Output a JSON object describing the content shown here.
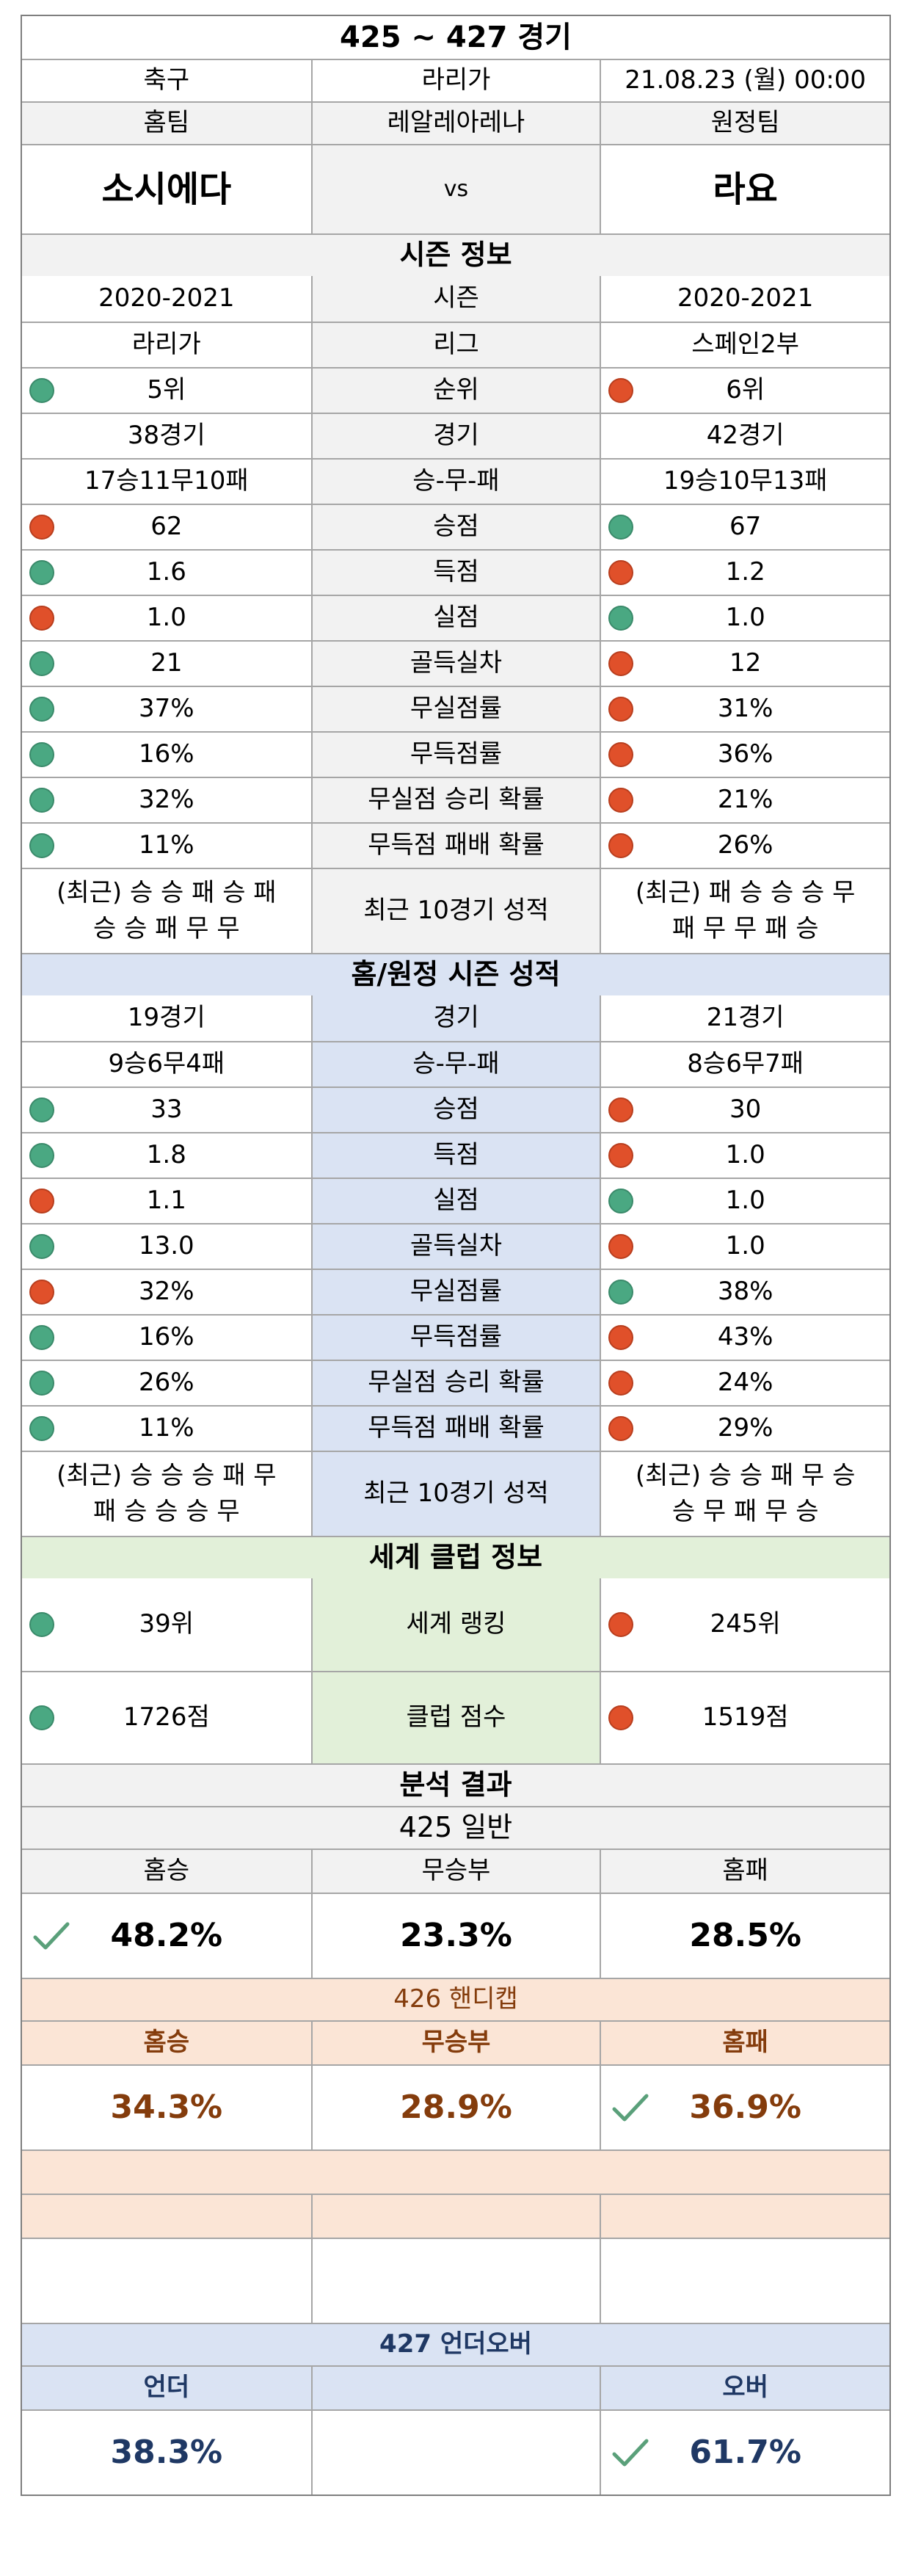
{
  "header": {
    "title": "425 ~ 427 경기",
    "sport": "축구",
    "league": "라리가",
    "datetime": "21.08.23 (월) 00:00",
    "home_label": "홈팀",
    "stadium": "레알레아레나",
    "away_label": "원정팀",
    "home_team": "소시에다",
    "vs": "vs",
    "away_team": "라요"
  },
  "season": {
    "section_title": "시즌 정보",
    "rows": [
      {
        "home": "2020-2021",
        "label": "시즌",
        "away": "2020-2021",
        "home_dot": "",
        "away_dot": ""
      },
      {
        "home": "라리가",
        "label": "리그",
        "away": "스페인2부",
        "home_dot": "",
        "away_dot": ""
      },
      {
        "home": "5위",
        "label": "순위",
        "away": "6위",
        "home_dot": "green",
        "away_dot": "red"
      },
      {
        "home": "38경기",
        "label": "경기",
        "away": "42경기",
        "home_dot": "",
        "away_dot": ""
      },
      {
        "home": "17승11무10패",
        "label": "승-무-패",
        "away": "19승10무13패",
        "home_dot": "",
        "away_dot": ""
      },
      {
        "home": "62",
        "label": "승점",
        "away": "67",
        "home_dot": "red",
        "away_dot": "green"
      },
      {
        "home": "1.6",
        "label": "득점",
        "away": "1.2",
        "home_dot": "green",
        "away_dot": "red"
      },
      {
        "home": "1.0",
        "label": "실점",
        "away": "1.0",
        "home_dot": "red",
        "away_dot": "green"
      },
      {
        "home": "21",
        "label": "골득실차",
        "away": "12",
        "home_dot": "green",
        "away_dot": "red"
      },
      {
        "home": "37%",
        "label": "무실점률",
        "away": "31%",
        "home_dot": "green",
        "away_dot": "red"
      },
      {
        "home": "16%",
        "label": "무득점률",
        "away": "36%",
        "home_dot": "green",
        "away_dot": "red"
      },
      {
        "home": "32%",
        "label": "무실점 승리 확률",
        "away": "21%",
        "home_dot": "green",
        "away_dot": "red"
      },
      {
        "home": "11%",
        "label": "무득점 패배 확률",
        "away": "26%",
        "home_dot": "green",
        "away_dot": "red"
      }
    ],
    "recent": {
      "home_line1": "(최근) 승 승 패 승 패",
      "home_line2": "승 승 패 무 무",
      "label": "최근 10경기 성적",
      "away_line1": "(최근) 패 승 승 승 무",
      "away_line2": "패 무 무 패 승"
    }
  },
  "homeaway": {
    "section_title": "홈/원정 시즌 성적",
    "rows": [
      {
        "home": "19경기",
        "label": "경기",
        "away": "21경기",
        "home_dot": "",
        "away_dot": ""
      },
      {
        "home": "9승6무4패",
        "label": "승-무-패",
        "away": "8승6무7패",
        "home_dot": "",
        "away_dot": ""
      },
      {
        "home": "33",
        "label": "승점",
        "away": "30",
        "home_dot": "green",
        "away_dot": "red"
      },
      {
        "home": "1.8",
        "label": "득점",
        "away": "1.0",
        "home_dot": "green",
        "away_dot": "red"
      },
      {
        "home": "1.1",
        "label": "실점",
        "away": "1.0",
        "home_dot": "red",
        "away_dot": "green"
      },
      {
        "home": "13.0",
        "label": "골득실차",
        "away": "1.0",
        "home_dot": "green",
        "away_dot": "red"
      },
      {
        "home": "32%",
        "label": "무실점률",
        "away": "38%",
        "home_dot": "red",
        "away_dot": "green"
      },
      {
        "home": "16%",
        "label": "무득점률",
        "away": "43%",
        "home_dot": "green",
        "away_dot": "red"
      },
      {
        "home": "26%",
        "label": "무실점 승리 확률",
        "away": "24%",
        "home_dot": "green",
        "away_dot": "red"
      },
      {
        "home": "11%",
        "label": "무득점 패배 확률",
        "away": "29%",
        "home_dot": "green",
        "away_dot": "red"
      }
    ],
    "recent": {
      "home_line1": "(최근) 승 승 승 패 무",
      "home_line2": "패 승 승 승 무",
      "label": "최근 10경기 성적",
      "away_line1": "(최근) 승 승 패 무 승",
      "away_line2": "승 무 패 무 승"
    }
  },
  "world": {
    "section_title": "세계 클럽 정보",
    "rows": [
      {
        "home": "39위",
        "label": "세계 랭킹",
        "away": "245위",
        "home_dot": "green",
        "away_dot": "red"
      },
      {
        "home": "1726점",
        "label": "클럽 점수",
        "away": "1519점",
        "home_dot": "green",
        "away_dot": "red"
      }
    ]
  },
  "analysis": {
    "section_title": "분석 결과",
    "general": {
      "title": "425 일반",
      "labels": [
        "홈승",
        "무승부",
        "홈패"
      ],
      "values": [
        "48.2%",
        "23.3%",
        "28.5%"
      ],
      "checked_index": 0
    },
    "handicap": {
      "title": "426 핸디캡",
      "labels": [
        "홈승",
        "무승부",
        "홈패"
      ],
      "values": [
        "34.3%",
        "28.9%",
        "36.9%"
      ],
      "checked_index": 2
    },
    "underover": {
      "title": "427 언더오버",
      "labels": [
        "언더",
        "",
        "오버"
      ],
      "values": [
        "38.3%",
        "",
        "61.7%"
      ],
      "checked_index": 2
    }
  },
  "colors": {
    "dot_green": "#4aa882",
    "dot_red": "#e0502a",
    "handicap_text": "#843c0c",
    "underover_text": "#1f3864",
    "check": "#5aa07a"
  }
}
